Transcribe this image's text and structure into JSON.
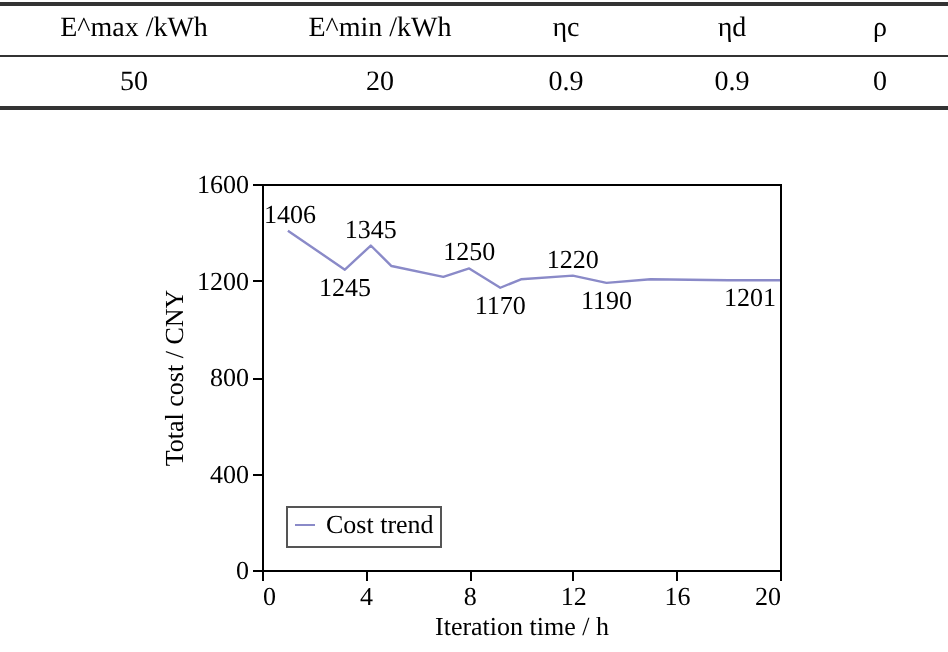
{
  "chart_data": {
    "type": "line",
    "xlabel": "Iteration time / h",
    "ylabel": "Total cost / CNY",
    "annotations": [
      "E^max /kWh",
      "E^min /kWh",
      "ηc",
      "ηd",
      "ρ",
      "50",
      "20",
      "0.9",
      "0.9",
      "0",
      {
        "text": "1406",
        "x": 1,
        "y": 1406
      },
      {
        "text": "1245",
        "x": 3.2,
        "y": 1245
      },
      {
        "text": "1345",
        "x": 4.2,
        "y": 1345
      },
      {
        "text": "1250",
        "x": 8,
        "y": 1250
      },
      {
        "text": "1170",
        "x": 9.2,
        "y": 1170
      },
      {
        "text": "1220",
        "x": 12,
        "y": 1220
      },
      {
        "text": "1190",
        "x": 13.3,
        "y": 1190
      },
      {
        "text": "1201",
        "x": 20,
        "y": 1201
      }
    ],
    "series": [
      {
        "name": "Cost trend",
        "color": "#8a8ac8",
        "x": [
          1,
          3.2,
          4.2,
          5,
          7,
          8,
          9.2,
          10,
          12,
          13.3,
          15,
          18,
          20
        ],
        "values": [
          1406,
          1245,
          1345,
          1260,
          1215,
          1250,
          1170,
          1205,
          1220,
          1190,
          1205,
          1201,
          1201
        ]
      }
    ],
    "xlim": [
      0,
      20
    ],
    "xticks": [
      0,
      4,
      8,
      12,
      16,
      20
    ],
    "ylim": [
      0,
      1600
    ],
    "yticks": [
      0,
      400,
      800,
      1200,
      1600
    ],
    "grid": false,
    "legend": "bottom left",
    "marker": "none",
    "line_style": "solid"
  }
}
